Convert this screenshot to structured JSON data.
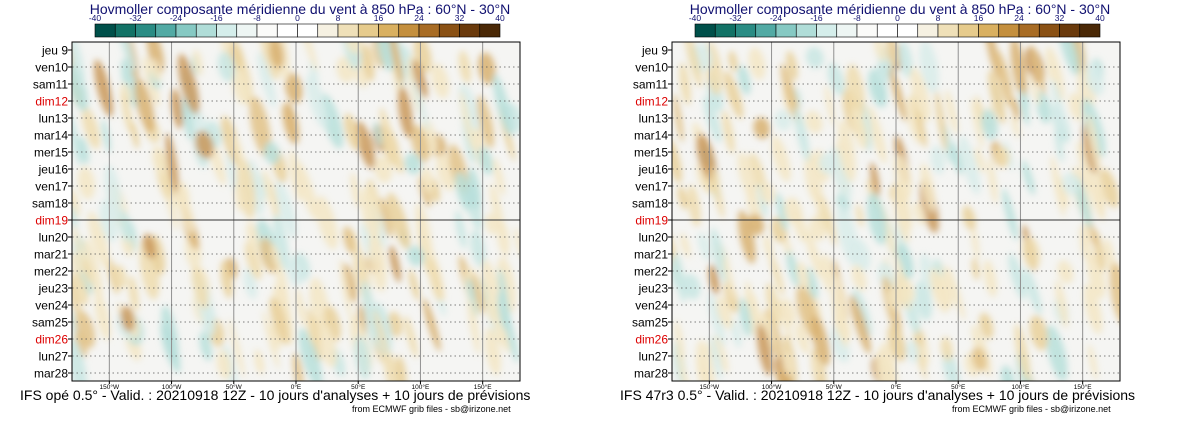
{
  "colors": {
    "title": "#101070",
    "weekend": "#dd0000",
    "weekday": "#000000",
    "scale": [
      "#00504a",
      "#127266",
      "#2a8c84",
      "#52aaa4",
      "#86c9c3",
      "#b0ddd8",
      "#d5eeeb",
      "#eef6f4",
      "#fbfbf9",
      "#f6f1e2",
      "#efe0b8",
      "#e6cb8c",
      "#d9b060",
      "#c48f3d",
      "#a86c24",
      "#8a5114",
      "#6a3a0c",
      "#4a2806"
    ]
  },
  "panels": [
    {
      "title": "Hovmoller composante méridienne du vent à 850 hPa : 60°N - 30°N",
      "footer": "IFS opé 0.5° - Valid. : 20210918 12Z - 10 jours d'analyses + 10 jours de prévisions",
      "credit": "from ECMWF grib files - sb@irizone.net"
    },
    {
      "title": "Hovmoller composante méridienne du vent à 850 hPa : 60°N - 30°N",
      "footer": "IFS 47r3 0.5° - Valid. : 20210918 12Z - 10 jours d'analyses + 10 jours de prévisions",
      "credit": "from ECMWF grib files - sb@irizone.net"
    }
  ],
  "chart_data": [
    {
      "type": "heatmap",
      "title": "Hovmoller composante méridienne du vent à 850 hPa : 60°N - 30°N",
      "colorbar": {
        "ticks": [
          "-40",
          "-32",
          "-24",
          "-16",
          "-8",
          "0",
          "8",
          "16",
          "24",
          "32",
          "40"
        ],
        "range": [
          -40,
          40
        ]
      },
      "y_dates": [
        "jeu 9",
        "ven10",
        "sam11",
        "dim12",
        "lun13",
        "mar14",
        "mer15",
        "jeu16",
        "ven17",
        "sam18",
        "dim19",
        "lun20",
        "mar21",
        "mer22",
        "jeu23",
        "ven24",
        "sam25",
        "dim26",
        "lun27",
        "mar28"
      ],
      "weekend_dates": [
        "dim12",
        "dim19",
        "dim26"
      ],
      "x_ticks": [
        "150°W",
        "100°W",
        "50°W",
        "0°E",
        "50°E",
        "100°E",
        "150°E"
      ],
      "x_range_deg": [
        -180,
        180
      ],
      "analysis_forecast_split": "dim19"
    },
    {
      "type": "heatmap",
      "title": "Hovmoller composante méridienne du vent à 850 hPa : 60°N - 30°N",
      "colorbar": {
        "ticks": [
          "-40",
          "-32",
          "-24",
          "-16",
          "-8",
          "0",
          "8",
          "16",
          "24",
          "32",
          "40"
        ],
        "range": [
          -40,
          40
        ]
      },
      "y_dates": [
        "jeu 9",
        "ven10",
        "sam11",
        "dim12",
        "lun13",
        "mar14",
        "mer15",
        "jeu16",
        "ven17",
        "sam18",
        "dim19",
        "lun20",
        "mar21",
        "mer22",
        "jeu23",
        "ven24",
        "sam25",
        "dim26",
        "lun27",
        "mar28"
      ],
      "weekend_dates": [
        "dim12",
        "dim19",
        "dim26"
      ],
      "x_ticks": [
        "150°W",
        "100°W",
        "50°W",
        "0°E",
        "50°E",
        "100°E",
        "150°E"
      ],
      "x_range_deg": [
        -180,
        180
      ],
      "analysis_forecast_split": "dim19"
    }
  ]
}
